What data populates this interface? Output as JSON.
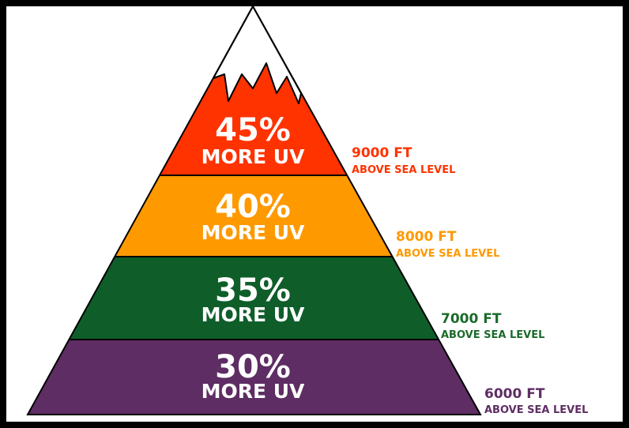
{
  "levels": [
    {
      "percent": "45%",
      "caption": "MORE UV",
      "altitude": "9000 FT",
      "note": "ABOVE SEA LEVEL"
    },
    {
      "percent": "40%",
      "caption": "MORE UV",
      "altitude": "8000 FT",
      "note": "ABOVE SEA LEVEL"
    },
    {
      "percent": "35%",
      "caption": "MORE UV",
      "altitude": "7000 FT",
      "note": "ABOVE SEA LEVEL"
    },
    {
      "percent": "30%",
      "caption": "MORE UV",
      "altitude": "6000 FT",
      "note": "ABOVE SEA LEVEL"
    }
  ]
}
